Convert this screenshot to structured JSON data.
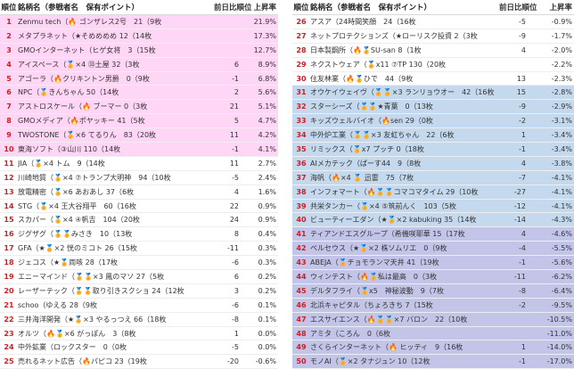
{
  "headers": {
    "rank": "順位",
    "name": "銘柄名（参戦者名　保有ポイント）",
    "change": "前日比順位",
    "rate": "上昇率"
  },
  "left_rows": [
    {
      "rank": "1",
      "text": "Zenmu tech（🔥 ゴンザレス2号　21（9枚",
      "change": "",
      "rate": "21.9%"
    },
    {
      "rank": "2",
      "text": "メタプラネット（★そめめめめ 12（14枚",
      "change": "",
      "rate": "17.3%"
    },
    {
      "rank": "3",
      "text": "GMOインターネット（ヒゲ女将　3（15枚",
      "change": "",
      "rate": "12.7%"
    },
    {
      "rank": "4",
      "text": "アイスペース（🏅×4 ㉝土屋 32（3枚",
      "change": "6",
      "rate": "8.9%"
    },
    {
      "rank": "5",
      "text": "アゴーラ（🔥クリキントン男爵　0（9枚",
      "change": "-1",
      "rate": "6.8%"
    },
    {
      "rank": "6",
      "text": "NPC（🏅きんちゃん 50（14枚",
      "change": "2",
      "rate": "5.6%"
    },
    {
      "rank": "7",
      "text": "アストロスケール（🔥 ブーマー 0（3枚",
      "change": "21",
      "rate": "5.1%"
    },
    {
      "rank": "8",
      "text": "GMOメディア（🔥ポヤッキー 41（5枚",
      "change": "5",
      "rate": "4.7%"
    },
    {
      "rank": "9",
      "text": "TWOSTONE（🏅×6 てるりん　83（20枚",
      "change": "11",
      "rate": "4.2%"
    },
    {
      "rank": "10",
      "text": "東海ソフト（③山川 110（14枚",
      "change": "-1",
      "rate": "4.1%"
    },
    {
      "rank": "11",
      "text": "JIA（🏅×4 トム　9（14枚",
      "change": "11",
      "rate": "2.7%"
    },
    {
      "rank": "12",
      "text": "川崎地質（🏅×4 ⑦トランプ大明神　94（10枚",
      "change": "-5",
      "rate": "2.4%"
    },
    {
      "rank": "13",
      "text": "放電精密（🏅×6 あおあし 37（6枚",
      "change": "4",
      "rate": "1.6%"
    },
    {
      "rank": "14",
      "text": "STG（🏅×4 王大谷翔平　60（16枚",
      "change": "22",
      "rate": "0.9%"
    },
    {
      "rank": "15",
      "text": "スカパー（🏅×4 ④帆吉　104（20枚",
      "change": "24",
      "rate": "0.9%"
    },
    {
      "rank": "16",
      "text": "ジグザグ（🏅🏅みさき　10（13枚",
      "change": "8",
      "rate": "0.4%"
    },
    {
      "rank": "17",
      "text": "GFA（★🏅×2 恍のミコト 26（15枚",
      "change": "-11",
      "rate": "0.3%"
    },
    {
      "rank": "18",
      "text": "ジェコス（★🏅両咳 28（17枚",
      "change": "-6",
      "rate": "0.3%"
    },
    {
      "rank": "19",
      "text": "エニーマインド（🏅🏅×3 鳳のマソ 27（5枚",
      "change": "6",
      "rate": "0.2%"
    },
    {
      "rank": "20",
      "text": "レーザーテック（🏅🏅取り引きスクショ 24（12枚",
      "change": "3",
      "rate": "0.2%"
    },
    {
      "rank": "21",
      "text": "schoo（ゆえる 28（9枚",
      "change": "-6",
      "rate": "0.1%"
    },
    {
      "rank": "22",
      "text": "三井海洋開発（★🏅×3 やるっつえ 66（18枚",
      "change": "-8",
      "rate": "0.1%"
    },
    {
      "rank": "23",
      "text": "オルツ（🔥🏅×6 がっぽん　3（8枚",
      "change": "1",
      "rate": "0.0%"
    },
    {
      "rank": "24",
      "text": "中外鉱業（ロックスター　0（0枚",
      "change": "-5",
      "rate": "0.0%"
    },
    {
      "rank": "25",
      "text": "売れるネット広告（🔥パピコ 23（19枚",
      "change": "-20",
      "rate": "-0.6%"
    }
  ],
  "right_rows": [
    {
      "rank": "26",
      "text": "アスア（24時間笑顔　24（16枚",
      "change": "-5",
      "rate": "-0.9%"
    },
    {
      "rank": "27",
      "text": "ネットプロテクションズ（★ローリスク投資 2（3枚",
      "change": "-9",
      "rate": "-1.7%"
    },
    {
      "rank": "28",
      "text": "日本製鋼所（🔥🏅SU-san 8（1枚",
      "change": "4",
      "rate": "-2.0%"
    },
    {
      "rank": "29",
      "text": "ネクストウェア（🏅x11 ⑦TP 130（20枚",
      "change": "",
      "rate": "-2.2%"
    },
    {
      "rank": "30",
      "text": "住友林業（🔥🏅ひで　44（9枚",
      "change": "13",
      "rate": "-2.3%"
    },
    {
      "rank": "31",
      "text": "オウケイウェイヴ（🏅🏅×3 ランリョウオー　42（16枚",
      "change": "15",
      "rate": "-2.8%"
    },
    {
      "rank": "32",
      "text": "スターシーズ（🏅🏅★青葉　0（13枚",
      "change": "-9",
      "rate": "-2.9%"
    },
    {
      "rank": "33",
      "text": "キッズウェルバイオ（🔥sen 29（0枚",
      "change": "-2",
      "rate": "-3.1%"
    },
    {
      "rank": "34",
      "text": "中外炉工業（🏅🏅×3 友虹ちゃん　22（6枚",
      "change": "1",
      "rate": "-3.4%"
    },
    {
      "rank": "35",
      "text": "リミックス（🏅x7 プッチ 0（18枚",
      "change": "-1",
      "rate": "-3.4%"
    },
    {
      "rank": "36",
      "text": "AIメカテック（ぱーす44　9（8枚",
      "change": "4",
      "rate": "-3.8%"
    },
    {
      "rank": "37",
      "text": "海帆（🔥×4 🏅 迅雷　75（7枚",
      "change": "-7",
      "rate": "-4.1%"
    },
    {
      "rank": "38",
      "text": "インフォマート（🔥🏅🏅コマコマタイム 29（10枚",
      "change": "-27",
      "rate": "-4.1%"
    },
    {
      "rank": "39",
      "text": "共栄タンカー（🏅×4 ⑤筑前んく　103（5枚",
      "change": "-12",
      "rate": "-4.1%"
    },
    {
      "rank": "40",
      "text": "ビューティーエダン（★🏅×2 kabuking 35（14枚",
      "change": "-14",
      "rate": "-4.3%"
    },
    {
      "rank": "41",
      "text": "ティアンドエスグループ（希機咲耶華 15（17枚",
      "change": "4",
      "rate": "-4.6%"
    },
    {
      "rank": "42",
      "text": "ペルセウス（★🏅×2 株ソムリエ　0（9枚",
      "change": "-4",
      "rate": "-5.5%"
    },
    {
      "rank": "43",
      "text": "ABEJA（🏅チョモランマ天井 41（19枚",
      "change": "-1",
      "rate": "-5.6%"
    },
    {
      "rank": "44",
      "text": "ウィンテスト（🔥🏅私は最高　0（3枚",
      "change": "-11",
      "rate": "-6.2%"
    },
    {
      "rank": "45",
      "text": "デルタフライ（🏅x5　神秘波動　9（7枚",
      "change": "-8",
      "rate": "-6.4%"
    },
    {
      "rank": "46",
      "text": "北浜キャピタル（ちょろきち 7（15枚",
      "change": "-2",
      "rate": "-9.5%"
    },
    {
      "rank": "47",
      "text": "エスサイエンス（🔥🏅🏅×7 バロン　22（10枚",
      "change": "",
      "rate": "-10.5%"
    },
    {
      "rank": "48",
      "text": "アミタ（ころん　0（6枚",
      "change": "",
      "rate": "-11.0%"
    },
    {
      "rank": "49",
      "text": "さくらインターネット（🔥 ヒッティ　9（16枚",
      "change": "1",
      "rate": "-14.0%"
    },
    {
      "rank": "50",
      "text": "モノAI（🏅×2 タナジュン 10（12枚",
      "change": "-1",
      "rate": "-17.0%"
    }
  ],
  "colors": {
    "rank_red": "#d9181e",
    "pink": "#ffd6f6",
    "blue": "#c4d9ed",
    "purple": "#c2c5e8"
  }
}
